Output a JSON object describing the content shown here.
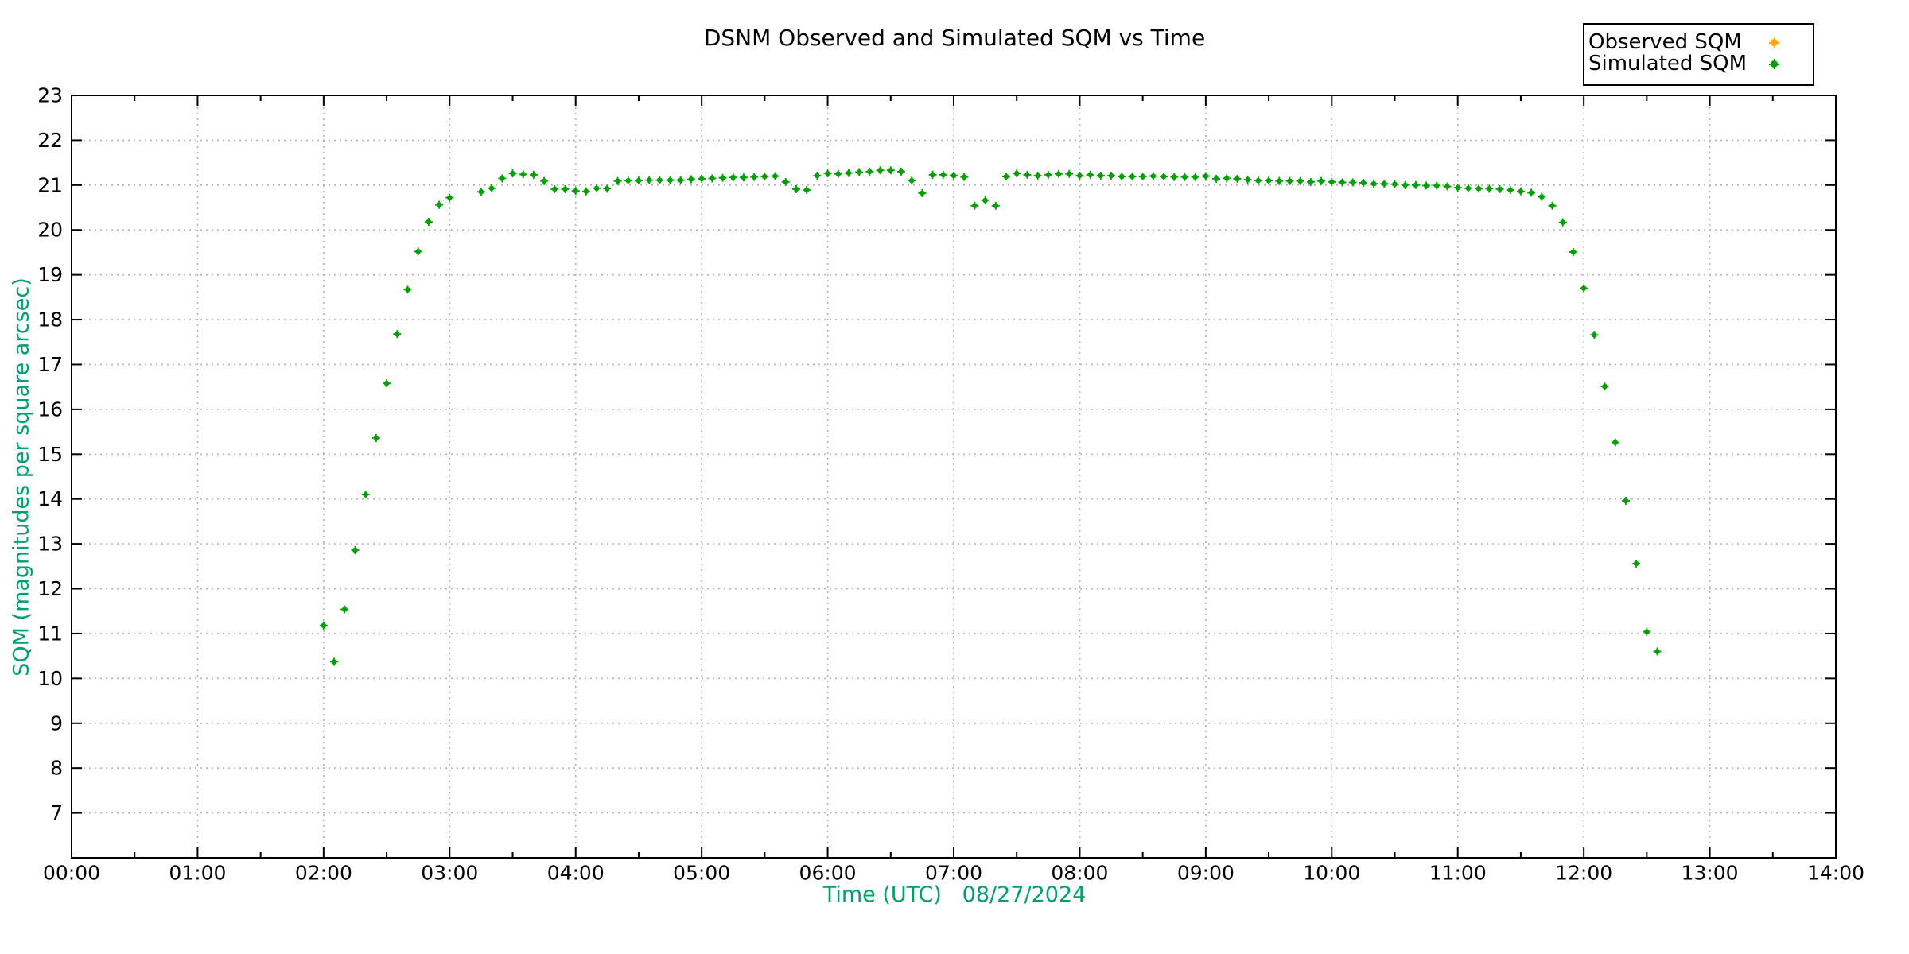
{
  "chart_data": {
    "type": "scatter",
    "title": "DSNM Observed and Simulated SQM vs Time",
    "xlabel": "Time (UTC)   08/27/2024",
    "ylabel": "SQM (magnitudes per square arcsec)",
    "xlim_hours": [
      0,
      14
    ],
    "ylim": [
      6,
      23
    ],
    "x_tick_labels": [
      "00:00",
      "01:00",
      "02:00",
      "03:00",
      "04:00",
      "05:00",
      "06:00",
      "07:00",
      "08:00",
      "09:00",
      "10:00",
      "11:00",
      "12:00",
      "13:00",
      "14:00"
    ],
    "x_minor_tick_minutes": 30,
    "y_tick_values": [
      7,
      8,
      9,
      10,
      11,
      12,
      13,
      14,
      15,
      16,
      17,
      18,
      19,
      20,
      21,
      22,
      23
    ],
    "grid": true,
    "grid_style": "dotted",
    "legend_position": "outside-top-right",
    "colors": {
      "axis_label_green": "#00a06e",
      "grid_gray": "#b3b3b3",
      "frame_black": "#000000"
    },
    "series": [
      {
        "name": "Observed SQM",
        "color": "#ffa500",
        "marker": "dot",
        "points": []
      },
      {
        "name": "Simulated SQM",
        "color": "#00a000",
        "marker": "dot",
        "points": [
          [
            "02:00",
            11.18
          ],
          [
            "02:05",
            10.37
          ],
          [
            "02:10",
            11.54
          ],
          [
            "02:15",
            12.86
          ],
          [
            "02:20",
            14.1
          ],
          [
            "02:25",
            15.36
          ],
          [
            "02:30",
            16.58
          ],
          [
            "02:35",
            17.68
          ],
          [
            "02:40",
            18.67
          ],
          [
            "02:45",
            19.52
          ],
          [
            "02:50",
            20.18
          ],
          [
            "02:55",
            20.56
          ],
          [
            "03:00",
            20.72
          ],
          [
            "03:15",
            20.85
          ],
          [
            "03:20",
            20.93
          ],
          [
            "03:25",
            21.15
          ],
          [
            "03:30",
            21.26
          ],
          [
            "03:35",
            21.24
          ],
          [
            "03:40",
            21.23
          ],
          [
            "03:45",
            21.09
          ],
          [
            "03:50",
            20.91
          ],
          [
            "03:55",
            20.91
          ],
          [
            "04:00",
            20.87
          ],
          [
            "04:05",
            20.86
          ],
          [
            "04:10",
            20.93
          ],
          [
            "04:15",
            20.92
          ],
          [
            "04:20",
            21.09
          ],
          [
            "04:25",
            21.1
          ],
          [
            "04:30",
            21.1
          ],
          [
            "04:35",
            21.11
          ],
          [
            "04:40",
            21.11
          ],
          [
            "04:45",
            21.11
          ],
          [
            "04:50",
            21.11
          ],
          [
            "04:55",
            21.13
          ],
          [
            "05:00",
            21.14
          ],
          [
            "05:05",
            21.15
          ],
          [
            "05:10",
            21.16
          ],
          [
            "05:15",
            21.17
          ],
          [
            "05:20",
            21.17
          ],
          [
            "05:25",
            21.18
          ],
          [
            "05:30",
            21.19
          ],
          [
            "05:35",
            21.2
          ],
          [
            "05:40",
            21.07
          ],
          [
            "05:45",
            20.91
          ],
          [
            "05:50",
            20.89
          ],
          [
            "05:55",
            21.21
          ],
          [
            "06:00",
            21.26
          ],
          [
            "06:05",
            21.25
          ],
          [
            "06:10",
            21.27
          ],
          [
            "06:15",
            21.29
          ],
          [
            "06:20",
            21.3
          ],
          [
            "06:25",
            21.33
          ],
          [
            "06:30",
            21.33
          ],
          [
            "06:35",
            21.3
          ],
          [
            "06:40",
            21.1
          ],
          [
            "06:45",
            20.82
          ],
          [
            "06:50",
            21.23
          ],
          [
            "06:55",
            21.23
          ],
          [
            "07:00",
            21.21
          ],
          [
            "07:05",
            21.18
          ],
          [
            "07:10",
            20.54
          ],
          [
            "07:15",
            20.66
          ],
          [
            "07:20",
            20.54
          ],
          [
            "07:25",
            21.19
          ],
          [
            "07:30",
            21.26
          ],
          [
            "07:35",
            21.23
          ],
          [
            "07:40",
            21.21
          ],
          [
            "07:45",
            21.23
          ],
          [
            "07:50",
            21.25
          ],
          [
            "07:55",
            21.25
          ],
          [
            "08:00",
            21.21
          ],
          [
            "08:05",
            21.23
          ],
          [
            "08:10",
            21.21
          ],
          [
            "08:15",
            21.21
          ],
          [
            "08:20",
            21.19
          ],
          [
            "08:25",
            21.19
          ],
          [
            "08:30",
            21.19
          ],
          [
            "08:35",
            21.2
          ],
          [
            "08:40",
            21.19
          ],
          [
            "08:45",
            21.18
          ],
          [
            "08:50",
            21.18
          ],
          [
            "08:55",
            21.18
          ],
          [
            "09:00",
            21.2
          ],
          [
            "09:05",
            21.14
          ],
          [
            "09:10",
            21.15
          ],
          [
            "09:15",
            21.14
          ],
          [
            "09:20",
            21.12
          ],
          [
            "09:25",
            21.1
          ],
          [
            "09:30",
            21.1
          ],
          [
            "09:35",
            21.09
          ],
          [
            "09:40",
            21.09
          ],
          [
            "09:45",
            21.09
          ],
          [
            "09:50",
            21.07
          ],
          [
            "09:55",
            21.09
          ],
          [
            "10:00",
            21.07
          ],
          [
            "10:05",
            21.06
          ],
          [
            "10:10",
            21.06
          ],
          [
            "10:15",
            21.05
          ],
          [
            "10:20",
            21.03
          ],
          [
            "10:25",
            21.03
          ],
          [
            "10:30",
            21.02
          ],
          [
            "10:35",
            21.0
          ],
          [
            "10:40",
            21.0
          ],
          [
            "10:45",
            20.99
          ],
          [
            "10:50",
            20.99
          ],
          [
            "10:55",
            20.97
          ],
          [
            "11:00",
            20.94
          ],
          [
            "11:05",
            20.93
          ],
          [
            "11:10",
            20.92
          ],
          [
            "11:15",
            20.92
          ],
          [
            "11:20",
            20.91
          ],
          [
            "11:25",
            20.89
          ],
          [
            "11:30",
            20.86
          ],
          [
            "11:35",
            20.83
          ],
          [
            "11:40",
            20.74
          ],
          [
            "11:45",
            20.54
          ],
          [
            "11:50",
            20.17
          ],
          [
            "11:55",
            19.51
          ],
          [
            "12:00",
            18.7
          ],
          [
            "12:05",
            17.66
          ],
          [
            "12:10",
            16.51
          ],
          [
            "12:15",
            15.26
          ],
          [
            "12:20",
            13.96
          ],
          [
            "12:25",
            12.56
          ],
          [
            "12:30",
            11.04
          ],
          [
            "12:35",
            10.6
          ]
        ]
      }
    ]
  }
}
